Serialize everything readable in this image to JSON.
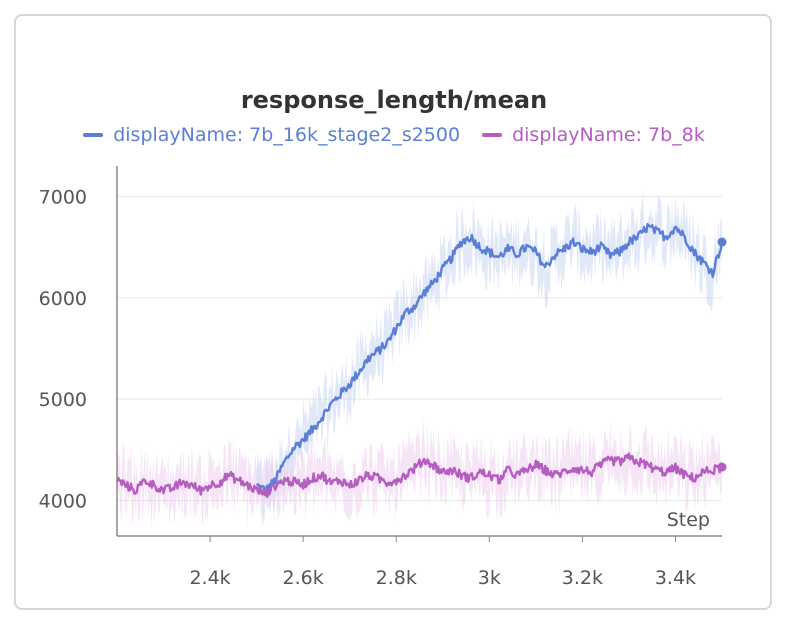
{
  "chart_data": {
    "type": "line",
    "title": "response_length/mean",
    "xlabel": "Step",
    "ylabel": "",
    "xlim": [
      2200,
      3500
    ],
    "ylim": [
      3650,
      7300
    ],
    "xticks": [
      2400,
      2600,
      2800,
      3000,
      3200,
      3400
    ],
    "xtick_labels": [
      "2.4k",
      "2.6k",
      "2.8k",
      "3k",
      "3.2k",
      "3.4k"
    ],
    "yticks": [
      4000,
      5000,
      6000,
      7000
    ],
    "ytick_labels": [
      "4000",
      "5000",
      "6000",
      "7000"
    ],
    "grid": true,
    "legend_position": "top-center",
    "series": [
      {
        "name": "displayName: 7b_16k_stage2_s2500",
        "color": "#5b7fd6",
        "band_color": "#c9d6f3",
        "x": [
          2500,
          2520,
          2540,
          2560,
          2580,
          2600,
          2620,
          2640,
          2660,
          2680,
          2700,
          2720,
          2740,
          2760,
          2780,
          2800,
          2820,
          2840,
          2860,
          2880,
          2900,
          2920,
          2940,
          2960,
          2980,
          3000,
          3020,
          3040,
          3060,
          3080,
          3100,
          3120,
          3140,
          3160,
          3180,
          3200,
          3220,
          3240,
          3260,
          3280,
          3300,
          3320,
          3340,
          3360,
          3380,
          3400,
          3420,
          3440,
          3460,
          3480,
          3500
        ],
        "y": [
          4150,
          4100,
          4200,
          4380,
          4520,
          4600,
          4700,
          4820,
          4950,
          5050,
          5150,
          5270,
          5400,
          5470,
          5550,
          5700,
          5850,
          5920,
          6050,
          6150,
          6280,
          6400,
          6550,
          6600,
          6500,
          6450,
          6400,
          6480,
          6430,
          6500,
          6450,
          6300,
          6420,
          6480,
          6550,
          6480,
          6450,
          6500,
          6420,
          6450,
          6550,
          6600,
          6700,
          6650,
          6600,
          6700,
          6600,
          6450,
          6350,
          6250,
          6550
        ]
      },
      {
        "name": "displayName: 7b_8k",
        "color": "#b55dc0",
        "band_color": "#ecd0f0",
        "x": [
          2200,
          2220,
          2240,
          2260,
          2280,
          2300,
          2320,
          2340,
          2360,
          2380,
          2400,
          2420,
          2440,
          2460,
          2480,
          2500,
          2520,
          2540,
          2560,
          2580,
          2600,
          2620,
          2640,
          2660,
          2680,
          2700,
          2720,
          2740,
          2760,
          2780,
          2800,
          2820,
          2840,
          2860,
          2880,
          2900,
          2920,
          2940,
          2960,
          2980,
          3000,
          3020,
          3040,
          3060,
          3080,
          3100,
          3120,
          3140,
          3160,
          3180,
          3200,
          3220,
          3240,
          3260,
          3280,
          3300,
          3320,
          3340,
          3360,
          3380,
          3400,
          3420,
          3440,
          3460,
          3480,
          3500
        ],
        "y": [
          4200,
          4150,
          4100,
          4200,
          4150,
          4100,
          4120,
          4180,
          4150,
          4100,
          4150,
          4180,
          4250,
          4200,
          4150,
          4100,
          4070,
          4150,
          4200,
          4180,
          4160,
          4220,
          4250,
          4170,
          4200,
          4150,
          4200,
          4250,
          4220,
          4180,
          4200,
          4250,
          4320,
          4400,
          4350,
          4280,
          4300,
          4250,
          4220,
          4280,
          4250,
          4200,
          4300,
          4250,
          4300,
          4350,
          4300,
          4250,
          4280,
          4320,
          4300,
          4280,
          4350,
          4400,
          4380,
          4420,
          4380,
          4350,
          4300,
          4280,
          4320,
          4250,
          4220,
          4280,
          4300,
          4330
        ]
      }
    ]
  }
}
